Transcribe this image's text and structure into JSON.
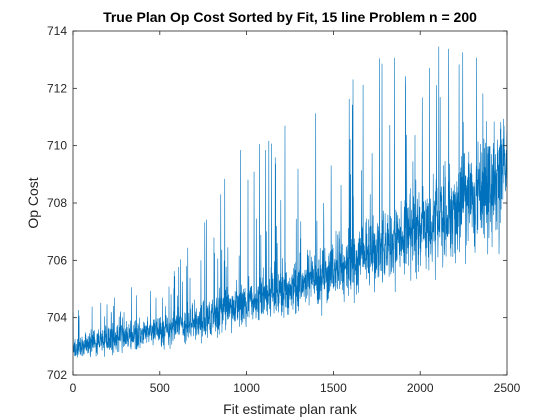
{
  "chart_data": {
    "type": "line",
    "title": "True Plan Op Cost Sorted by Fit, 15 line Problem n = 200",
    "xlabel": "Fit estimate plan rank",
    "ylabel": "Op Cost",
    "xlim": [
      0,
      2500
    ],
    "ylim": [
      702,
      714
    ],
    "xticks": [
      0,
      500,
      1000,
      1500,
      2000,
      2500
    ],
    "yticks": [
      702,
      704,
      706,
      708,
      710,
      712,
      714
    ],
    "grid": false,
    "legend": "none",
    "colors": {
      "series": "#0072BD",
      "axes": "#262626",
      "background": "#ffffff"
    },
    "series": [
      {
        "n_points": 2500,
        "noise_seed": 7,
        "trend_x": [
          0,
          100,
          250,
          400,
          550,
          700,
          850,
          1000,
          1200,
          1400,
          1600,
          1800,
          2000,
          2200,
          2400,
          2500
        ],
        "trend_y": [
          702.8,
          703.1,
          703.3,
          703.4,
          703.6,
          703.8,
          704.2,
          704.5,
          704.9,
          705.3,
          705.9,
          706.5,
          707.1,
          707.7,
          708.5,
          709.2
        ],
        "spread_y": [
          0.5,
          0.6,
          0.7,
          0.7,
          0.8,
          0.9,
          1.0,
          1.1,
          1.3,
          1.5,
          1.7,
          1.9,
          2.1,
          2.4,
          2.7,
          3.0
        ],
        "spike_max_y": [
          704.3,
          704.6,
          705.0,
          705.2,
          705.6,
          707.0,
          709.3,
          710.3,
          710.8,
          711.6,
          712.4,
          713.2,
          713.6,
          713.7,
          713.8,
          713.8
        ],
        "floor_y": 702.62
      }
    ]
  }
}
